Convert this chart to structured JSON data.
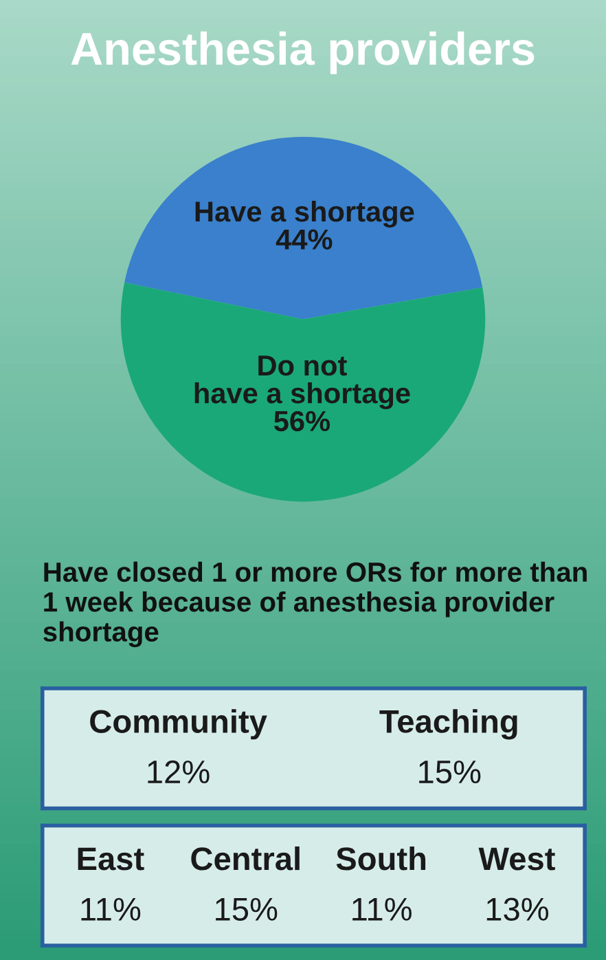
{
  "chart_data": [
    {
      "type": "pie",
      "title": "Anesthesia providers",
      "categories": [
        "Have a shortage",
        "Do not\nhave a shortage"
      ],
      "values": [
        44,
        56
      ],
      "value_labels": [
        "44%",
        "56%"
      ],
      "colors": [
        "#3a80cc",
        "#1aa878"
      ]
    },
    {
      "type": "other",
      "title": "Have closed 1 or more ORs for more than 1 week because of anesthesia provider shortage",
      "categories": [
        "Community",
        "Teaching"
      ],
      "value_labels": [
        "12%",
        "15%"
      ]
    },
    {
      "type": "other",
      "categories": [
        "East",
        "Central",
        "South",
        "West"
      ],
      "value_labels": [
        "11%",
        "15%",
        "11%",
        "13%"
      ]
    }
  ]
}
